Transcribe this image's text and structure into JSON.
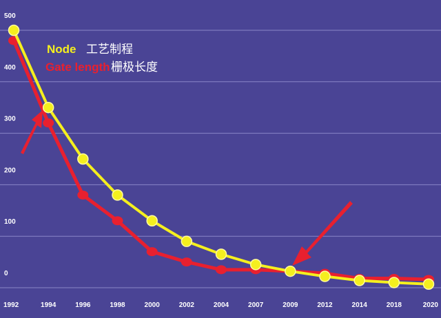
{
  "chart_data": {
    "type": "line",
    "categories": [
      "1992",
      "1994",
      "1996",
      "1998",
      "2000",
      "2002",
      "2004",
      "2007",
      "2009",
      "2012",
      "2014",
      "2018",
      "2020"
    ],
    "y_ticks": [
      "0",
      "100",
      "200",
      "300",
      "400",
      "500"
    ],
    "ylim": [
      0,
      500
    ],
    "grid": true,
    "legend": "top-left",
    "series": [
      {
        "name_prefix": "Node",
        "name_suffix": "工艺制程",
        "color": "#f5ef1e",
        "values": [
          500,
          350,
          250,
          180,
          130,
          90,
          65,
          45,
          32,
          22,
          14,
          10,
          7
        ]
      },
      {
        "name_prefix": "Gate length",
        "name_suffix": "栅极长度",
        "color": "#e8202f",
        "values": [
          480,
          320,
          180,
          130,
          70,
          50,
          35,
          35,
          32,
          28,
          18,
          18,
          16
        ]
      }
    ],
    "background": "#4a4495",
    "gridline_color": "#8a86c8",
    "arrow_color": "#e8202f"
  }
}
